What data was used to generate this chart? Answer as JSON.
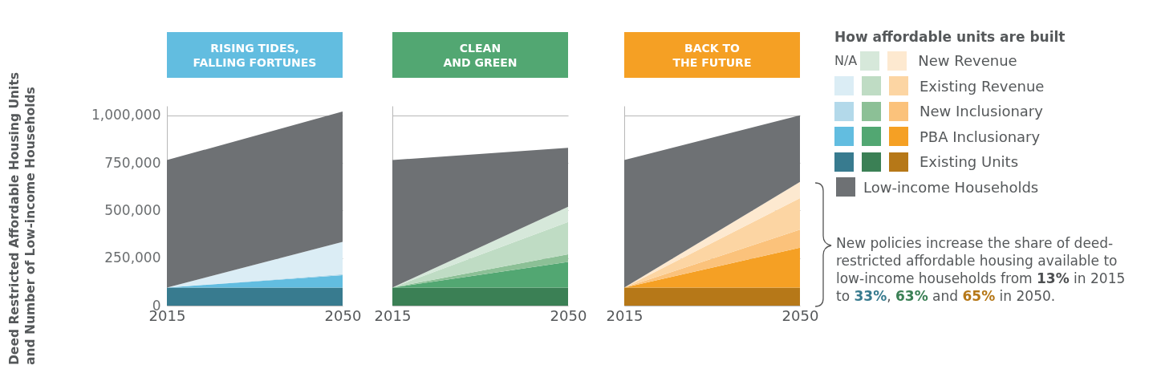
{
  "chart_data": [
    {
      "type": "area",
      "title": "RISING TIDES,\nFALLING FORTUNES",
      "ylabel": "Deed Restricted Affordable Housing Units\nand Number of Low-income Households",
      "x": [
        "2015",
        "2050"
      ],
      "xlim": [
        "2015",
        "2050"
      ],
      "xticks": [
        "2015",
        "2050"
      ],
      "ylim": [
        0,
        1050000
      ],
      "yticks": [
        0,
        {
          "value": 250000,
          "label": "250,000"
        },
        {
          "value": 500000,
          "label": "500,000"
        },
        {
          "value": 750000,
          "label": "750,000"
        },
        {
          "value": 1000000,
          "label": "1,000,000"
        }
      ],
      "stacked": true,
      "grid": "y",
      "annotations": [
        "N/A"
      ],
      "series": [
        {
          "color": "#387b8f",
          "values": [
            95000,
            95000
          ]
        },
        {
          "color": "#62bde0",
          "values": [
            0,
            65000
          ]
        },
        {
          "color": "#b3d9ea",
          "values": [
            0,
            5000
          ]
        },
        {
          "color": "#dbedf5",
          "values": [
            0,
            170000
          ]
        },
        {
          "color": null,
          "values": [
            null,
            null
          ]
        },
        {
          "color": "#6e7174",
          "values": [
            670000,
            685000
          ]
        }
      ]
    },
    {
      "type": "area",
      "title": "CLEAN\nAND GREEN",
      "x": [
        "2015",
        "2050"
      ],
      "xlim": [
        "2015",
        "2050"
      ],
      "xticks": [
        "2015",
        "2050"
      ],
      "ylim": [
        0,
        1050000
      ],
      "yticks": [
        0,
        250000,
        500000,
        750000,
        1000000
      ],
      "stacked": true,
      "grid": "y",
      "tick_labels": "x",
      "series": [
        {
          "color": "#3b8055",
          "values": [
            95000,
            95000
          ]
        },
        {
          "color": "#52a772",
          "values": [
            0,
            135000
          ]
        },
        {
          "color": "#8cc096",
          "values": [
            0,
            40000
          ]
        },
        {
          "color": "#bfdcc4",
          "values": [
            0,
            170000
          ]
        },
        {
          "color": "#d6e8da",
          "values": [
            0,
            80000
          ]
        },
        {
          "color": "#6e7174",
          "values": [
            670000,
            310000
          ]
        }
      ]
    },
    {
      "type": "area",
      "title": "BACK TO\nTHE FUTURE",
      "x": [
        "2015",
        "2050"
      ],
      "xlim": [
        "2015",
        "2050"
      ],
      "xticks": [
        "2015",
        "2050"
      ],
      "ylim": [
        0,
        1050000
      ],
      "yticks": [
        0,
        250000,
        500000,
        750000,
        1000000
      ],
      "stacked": true,
      "grid": "y",
      "tick_labels": "x",
      "legend": "right",
      "legend_title": "How affordable units are built",
      "annotations": [
        "New policies increase the share of deed-restricted affordable housing available to low-income households from 13% in 2015 to 33%, 63% and 65% in 2050."
      ],
      "series": [
        {
          "name": "Existing Units",
          "color": "#b67818",
          "values": [
            95000,
            95000
          ]
        },
        {
          "name": "PBA Inclusionary",
          "color": "#f5a024",
          "values": [
            0,
            210000
          ]
        },
        {
          "name": "New Inclusionary",
          "color": "#fbc27b",
          "values": [
            0,
            95000
          ]
        },
        {
          "name": "Existing Revenue",
          "color": "#fcd5a3",
          "values": [
            0,
            165000
          ]
        },
        {
          "name": "New Revenue",
          "color": "#fde9d0",
          "values": [
            0,
            85000
          ]
        },
        {
          "name": "Low-income Households",
          "color": "#6e7174",
          "values": [
            670000,
            350000
          ]
        }
      ]
    }
  ]
}
